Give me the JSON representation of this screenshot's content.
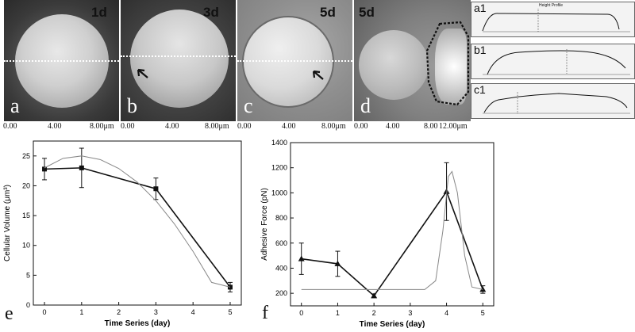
{
  "figure": {
    "panels": [
      {
        "letter": "a",
        "day": "1d"
      },
      {
        "letter": "b",
        "day": "3d"
      },
      {
        "letter": "c",
        "day": "5d"
      },
      {
        "letter": "d",
        "day": "5d"
      }
    ],
    "axis_ticks": [
      {
        "label": "0.00"
      },
      {
        "label": "4.00"
      },
      {
        "label": "8.00μm"
      },
      {
        "label": "0.00"
      },
      {
        "label": "4.00"
      },
      {
        "label": "8.00μm"
      },
      {
        "label": "0.00"
      },
      {
        "label": "4.00"
      },
      {
        "label": "8.00μm"
      },
      {
        "label": "0.00"
      },
      {
        "label": "4.00"
      },
      {
        "label": "8.00"
      },
      {
        "label": "12.00μm"
      }
    ],
    "profiles": [
      {
        "letter": "a1",
        "header": "Height Profile"
      },
      {
        "letter": "b1",
        "header": ""
      },
      {
        "letter": "c1",
        "header": ""
      }
    ]
  },
  "chart_data": [
    {
      "type": "line",
      "panel_letter": "e",
      "xlabel": "Time Series (day)",
      "ylabel": "Cellular Volume (μm³)",
      "xlim": [
        -0.3,
        5.3
      ],
      "ylim": [
        0,
        27.5
      ],
      "xticks": [
        0,
        1,
        2,
        3,
        4,
        5
      ],
      "yticks": [
        0,
        5,
        10,
        15,
        20,
        25
      ],
      "series": [
        {
          "x": [
            0,
            1,
            3,
            5
          ],
          "y": [
            22.8,
            23.0,
            19.5,
            3.0
          ],
          "error": [
            1.8,
            3.3,
            1.8,
            0.8
          ],
          "marker": "square",
          "color": "#111111"
        },
        {
          "x": [
            0,
            0.5,
            1,
            1.5,
            2,
            2.5,
            3,
            3.5,
            4,
            4.5,
            5
          ],
          "y": [
            23.0,
            24.6,
            25.0,
            24.4,
            22.9,
            20.6,
            17.5,
            13.6,
            9.0,
            3.8,
            3.0
          ],
          "color": "#888888",
          "fit": true
        }
      ]
    },
    {
      "type": "line",
      "panel_letter": "f",
      "xlabel": "Time Series (day)",
      "ylabel": "Adhesive Force (pN)",
      "xlim": [
        -0.3,
        5.3
      ],
      "ylim": [
        100,
        1400
      ],
      "xticks": [
        0,
        1,
        2,
        3,
        4,
        5
      ],
      "yticks": [
        200,
        400,
        600,
        800,
        1000,
        1200,
        1400
      ],
      "series": [
        {
          "x": [
            0,
            1,
            2,
            4,
            5
          ],
          "y": [
            475,
            435,
            180,
            1010,
            230
          ],
          "error": [
            125,
            100,
            15,
            230,
            30
          ],
          "marker": "triangle",
          "color": "#111111"
        },
        {
          "x": [
            0,
            3.4,
            3.7,
            3.9,
            4.05,
            4.15,
            4.3,
            4.5,
            4.7,
            5
          ],
          "y": [
            230,
            230,
            300,
            700,
            1130,
            1170,
            1000,
            500,
            250,
            230
          ],
          "color": "#888888",
          "fit": true
        }
      ]
    }
  ]
}
